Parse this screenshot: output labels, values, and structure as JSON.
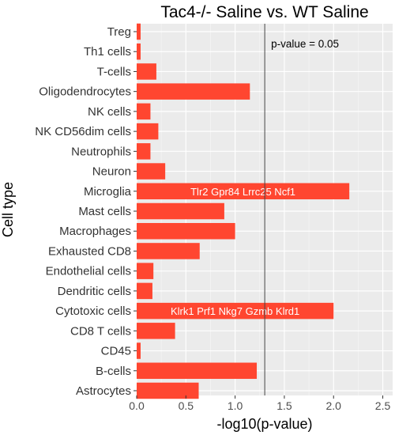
{
  "chart_data": {
    "type": "bar",
    "orientation": "horizontal",
    "title": "Tac4-/- Saline vs. WT Saline",
    "xlabel": "-log10(p-value)",
    "ylabel": "Cell type",
    "xlim": [
      0,
      2.6
    ],
    "xticks": [
      "0.0",
      "0.5",
      "1.0",
      "1.5",
      "2.0",
      "2.5"
    ],
    "grid": true,
    "bar_color": "#ff4630",
    "panel_color": "#ebebeb",
    "categories": [
      "Treg",
      "Th1 cells",
      "T-cells",
      "Oligodendrocytes",
      "NK cells",
      "NK CD56dim cells",
      "Neutrophils",
      "Neuron",
      "Microglia",
      "Mast cells",
      "Macrophages",
      "Exhausted CD8",
      "Endothelial cells",
      "Dendritic cells",
      "Cytotoxic cells",
      "CD8 T cells",
      "CD45",
      "B-cells",
      "Astrocytes"
    ],
    "values": [
      0.04,
      0.04,
      0.2,
      1.15,
      0.14,
      0.22,
      0.14,
      0.29,
      2.16,
      0.89,
      1.0,
      0.64,
      0.17,
      0.16,
      2.0,
      0.39,
      0.04,
      1.22,
      0.63
    ],
    "bar_annotations": [
      {
        "category": "Microglia",
        "text": "Tlr2  Gpr84  Lrrc25  Ncf1"
      },
      {
        "category": "Cytotoxic cells",
        "text": "Klrk1  Prf1  Nkg7  Gzmb  Klrd1"
      }
    ],
    "reference_line": {
      "x": 1.301,
      "label": "p-value = 0.05"
    }
  }
}
